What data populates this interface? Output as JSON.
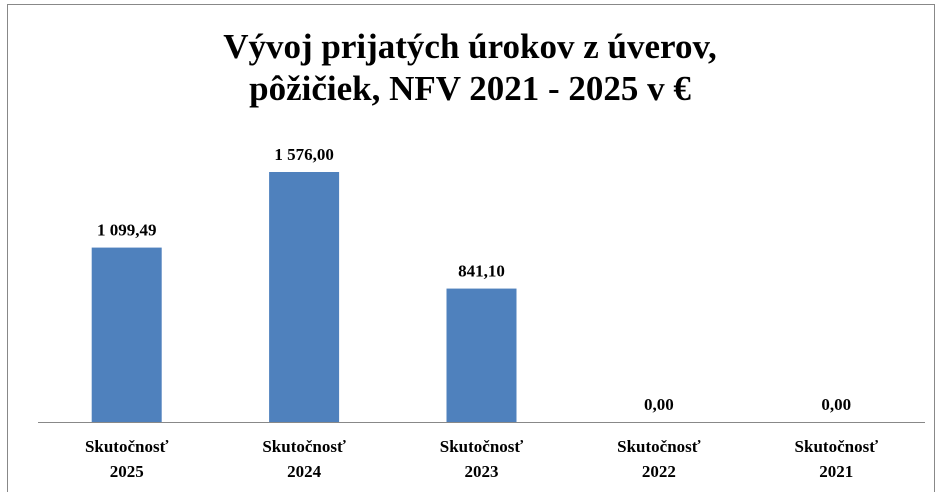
{
  "chart_data": {
    "type": "bar",
    "title": "Vývoj prijatých úrokov z úverov, pôžičiek, NFV 2021 - 2025 v €",
    "categories": [
      "Skutočnosť 2025",
      "Skutočnosť 2024",
      "Skutočnosť 2023",
      "Skutočnosť 2022",
      "Skutočnosť 2021"
    ],
    "values": [
      1099.49,
      1576.0,
      841.1,
      0,
      0
    ],
    "value_labels": [
      "1 099,49",
      "1 576,00",
      "841,10",
      "0,00",
      "0,00"
    ],
    "color": "#4f81bd"
  }
}
